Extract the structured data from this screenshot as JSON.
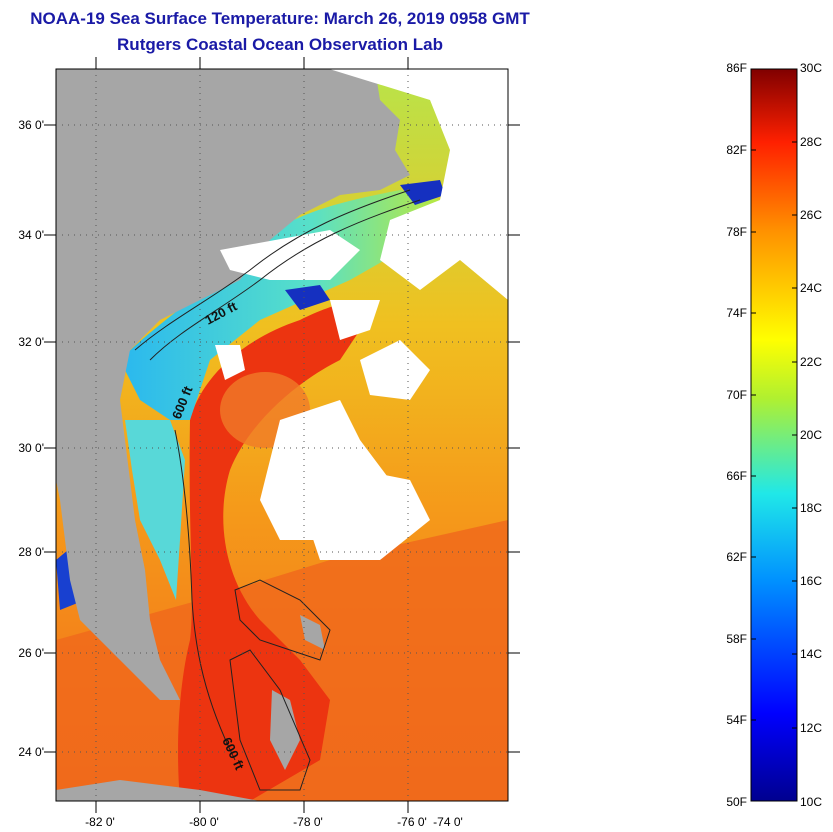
{
  "title": "NOAA-19 Sea Surface Temperature:  March 26, 2019 0958 GMT",
  "subtitle": "Rutgers Coastal Ocean Observation Lab",
  "map": {
    "lat_labels": [
      "36 0'",
      "34 0'",
      "32 0'",
      "30 0'",
      "28 0'",
      "26 0'",
      "24 0'"
    ],
    "lon_labels": [
      "-82 0'",
      "-80 0'",
      "-78 0'",
      "-76 0'",
      "-74 0'"
    ],
    "contour_labels": {
      "c120": "120 ft",
      "c600a": "600 ft",
      "c600b": "600 ft"
    },
    "colors": {
      "land": "#a6a6a6",
      "cloud": "#ffffff",
      "gulfstream": "#ee3a10",
      "shelf_cold": "#30c8ec"
    }
  },
  "colorbar": {
    "fahrenheit_labels": [
      "86F",
      "82F",
      "78F",
      "74F",
      "70F",
      "66F",
      "62F",
      "58F",
      "54F",
      "50F"
    ],
    "celsius_labels": [
      "30C",
      "28C",
      "26C",
      "24C",
      "22C",
      "20C",
      "18C",
      "16C",
      "14C",
      "12C",
      "10C"
    ]
  }
}
